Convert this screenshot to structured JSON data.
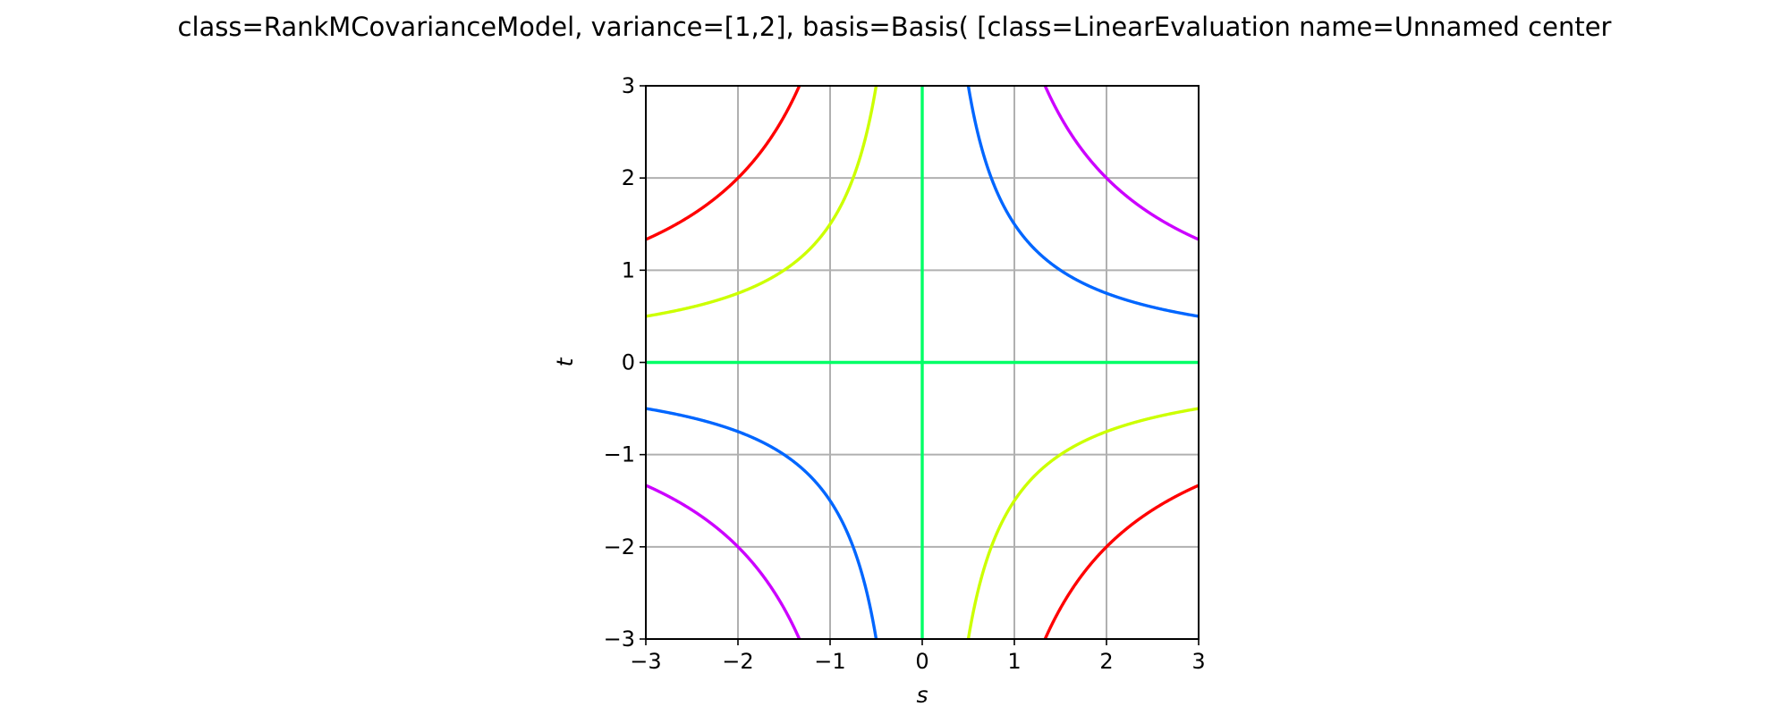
{
  "chart_data": {
    "type": "line",
    "title": "class=RankMCovarianceModel, variance=[1,2], basis=Basis( [class=LinearEvaluation name=Unnamed center",
    "xlabel": "s",
    "ylabel": "t",
    "xlim": [
      -3,
      3
    ],
    "ylim": [
      -3,
      3
    ],
    "grid": true,
    "legend": "none",
    "plot_kind": "contour of the covariance C(s,t)",
    "x_ticks": [
      -3,
      -2,
      -1,
      0,
      1,
      2,
      3
    ],
    "y_ticks": [
      -3,
      -2,
      -1,
      0,
      1,
      2,
      3
    ],
    "x_tick_labels": [
      "−3",
      "−2",
      "−1",
      "0",
      "1",
      "2",
      "3"
    ],
    "y_tick_labels": [
      "−3",
      "−2",
      "−1",
      "0",
      "1",
      "2",
      "3"
    ],
    "contour_levels": [
      {
        "level": -4,
        "color": "#ff0000"
      },
      {
        "level": -1.5,
        "color": "#ccff00"
      },
      {
        "level": 0,
        "color": "#00ff66"
      },
      {
        "level": 1.5,
        "color": "#0066ff"
      },
      {
        "level": 4,
        "color": "#cc00ff"
      }
    ]
  }
}
